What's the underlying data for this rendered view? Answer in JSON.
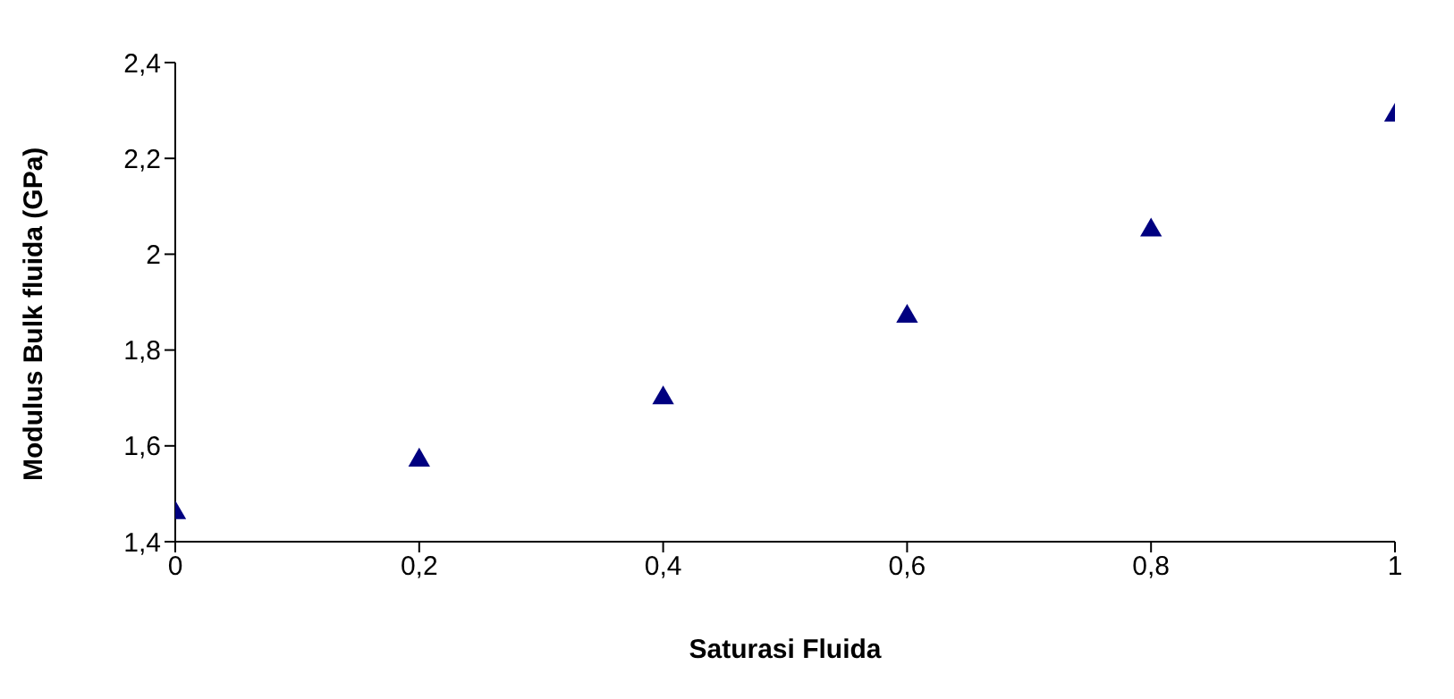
{
  "chart_data": {
    "type": "scatter",
    "xlabel": "Saturasi Fluida",
    "ylabel": "Modulus Bulk fluida (GPa)",
    "x": [
      0,
      0.2,
      0.4,
      0.6,
      0.8,
      1
    ],
    "series": [
      {
        "color": "#000080",
        "values": [
          1.46,
          1.57,
          1.7,
          1.87,
          2.05,
          2.29
        ]
      }
    ],
    "xlim": [
      0,
      1
    ],
    "xticks": [
      0,
      {
        "value": 0.2,
        "label": "0,2"
      },
      {
        "value": 0.4,
        "label": "0,4"
      },
      {
        "value": 0.6,
        "label": "0,6"
      },
      {
        "value": 0.8,
        "label": "0,8"
      },
      1
    ],
    "ylim": [
      1.4,
      2.4
    ],
    "yticks": [
      {
        "value": 1.4,
        "label": "1,4"
      },
      {
        "value": 1.6,
        "label": "1,6"
      },
      {
        "value": 1.8,
        "label": "1,8"
      },
      2,
      {
        "value": 2.2,
        "label": "2,2"
      },
      {
        "value": 2.4,
        "label": "2,4"
      }
    ],
    "marker": "triangle",
    "grid": false,
    "legend": false
  }
}
